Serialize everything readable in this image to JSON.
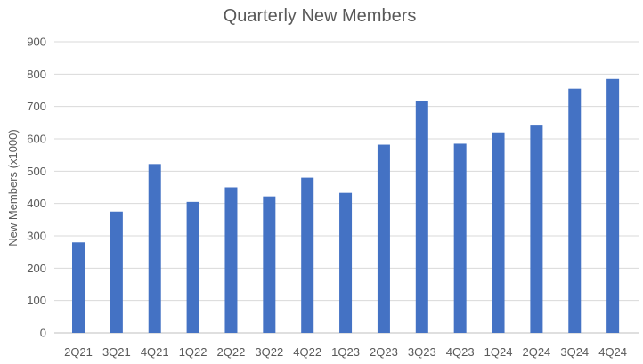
{
  "chart_data": {
    "type": "bar",
    "title": "Quarterly New Members",
    "ylabel": "New Members (x1000)",
    "xlabel": "",
    "categories": [
      "2Q21",
      "3Q21",
      "4Q21",
      "1Q22",
      "2Q22",
      "3Q22",
      "4Q22",
      "1Q23",
      "2Q23",
      "3Q23",
      "4Q23",
      "1Q24",
      "2Q24",
      "3Q24",
      "4Q24"
    ],
    "values": [
      280,
      375,
      522,
      405,
      450,
      422,
      480,
      433,
      582,
      716,
      585,
      620,
      641,
      755,
      785
    ],
    "ylim": [
      0,
      900
    ],
    "yticks": [
      0,
      100,
      200,
      300,
      400,
      500,
      600,
      700,
      800,
      900
    ],
    "grid": true,
    "bar_color": "#4472c4"
  }
}
